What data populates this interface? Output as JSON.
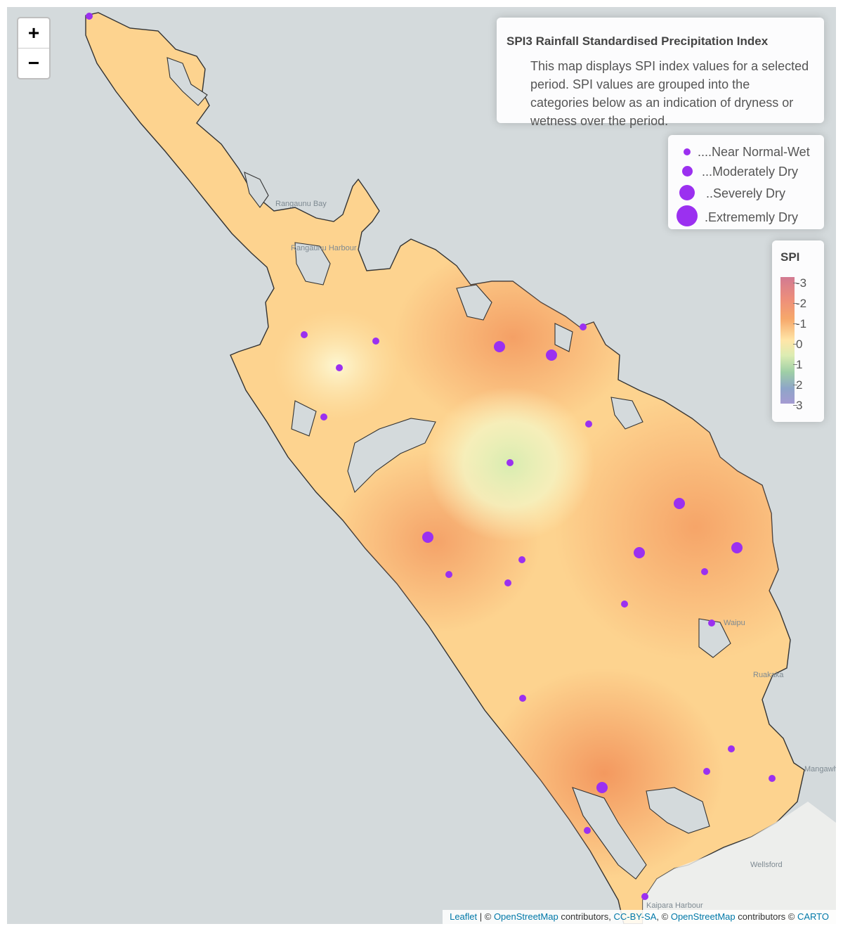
{
  "zoom": {
    "in_label": "+",
    "out_label": "−"
  },
  "info": {
    "title": "SPI3 Rainfall Standardised Precipitation Index",
    "description": "This map displays SPI index values for a selected period. SPI values are grouped into the categories below as an indication of dryness or wetness over the period."
  },
  "size_legend": [
    {
      "label": "....Near Normal-Wet"
    },
    {
      "label": "...Moderately Dry"
    },
    {
      "label": "..Severely Dry"
    },
    {
      "label": ".Extrememly Dry"
    }
  ],
  "spi_legend": {
    "title": "SPI",
    "ticks": [
      "-3",
      "-2",
      "-1",
      "0",
      "1",
      "2",
      "3"
    ]
  },
  "colors": {
    "marker": "#9b30f0",
    "dry": "#f6a86b",
    "neutral": "#ffe6a8",
    "wet": "#c6e3b0",
    "land": "#fdd38f",
    "water": "#d4dadc"
  },
  "place_labels": [
    "Rangaunu Bay",
    "Rangaunu Harbour",
    "Kaipara Harbour",
    "Wellsford",
    "Mangawhai",
    "Waipu",
    "Ruakaka"
  ],
  "attribution": {
    "leaflet": "Leaflet",
    "sep1": " | © ",
    "osm1": "OpenStreetMap",
    "text1": " contributors, ",
    "ccbysa": "CC-BY-SA",
    "sep2": ", © ",
    "osm2": "OpenStreetMap",
    "text2": " contributors © ",
    "carto": "CARTO"
  }
}
